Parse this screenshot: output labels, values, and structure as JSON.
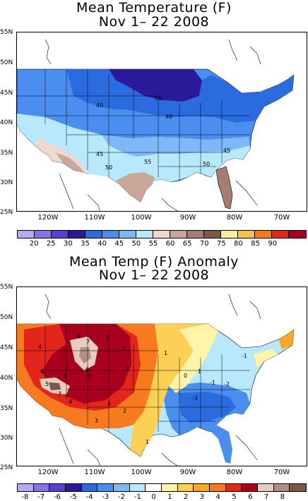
{
  "panels": [
    {
      "id": "mean-temperature",
      "title_line1": "Mean Temperature (F)",
      "title_line2": "Nov 1– 22 2008",
      "lat_labels": [
        "55N",
        "50N",
        "45N",
        "40N",
        "35N",
        "30N",
        "25N"
      ],
      "lon_labels": [
        "120W",
        "110W",
        "100W",
        "90W",
        "80W",
        "70W"
      ],
      "colorbar": {
        "colors": [
          "#b9a9f2",
          "#8a72e6",
          "#5a3fd4",
          "#2a1a9a",
          "#2b6be0",
          "#4a8ff0",
          "#7fb8f7",
          "#b8e8fb",
          "#f0d8d0",
          "#c9a59a",
          "#a57c70",
          "#7a5848",
          "#f7f09a",
          "#f8c14a",
          "#f77a1e",
          "#e2261c",
          "#a8001e"
        ],
        "labels": [
          "20",
          "25",
          "30",
          "35",
          "40",
          "45",
          "50",
          "55",
          "60",
          "65",
          "70",
          "75",
          "80",
          "85",
          "90"
        ]
      },
      "contour_labels": [
        "40",
        "55",
        "40",
        "45",
        "50",
        "55",
        "45",
        "50"
      ]
    },
    {
      "id": "mean-temperature-anomaly",
      "title_line1": "Mean Temp (F) Anomaly",
      "title_line2": "Nov 1– 22 2008",
      "lat_labels": [
        "55N",
        "50N",
        "45N",
        "40N",
        "35N",
        "30N",
        "25N"
      ],
      "lon_labels": [
        "120W",
        "110W",
        "100W",
        "90W",
        "80W",
        "70W"
      ],
      "colorbar": {
        "colors": [
          "#b9a9f2",
          "#8a72e6",
          "#5a3fd4",
          "#2a1a9a",
          "#2b6be0",
          "#4a8ff0",
          "#7fb8f7",
          "#b8e8fb",
          "#ffffff",
          "#fff4a8",
          "#fcd055",
          "#f9a72a",
          "#f77a1e",
          "#e2261c",
          "#a8001e",
          "#e9ccc0",
          "#b09084",
          "#7a5848"
        ],
        "labels": [
          "-8",
          "-7",
          "-6",
          "-5",
          "-4",
          "-3",
          "-2",
          "-1",
          "0",
          "1",
          "2",
          "3",
          "4",
          "5",
          "6",
          "7",
          "8"
        ]
      },
      "contour_labels": [
        "4",
        "6",
        "7",
        "6",
        "5",
        "3",
        "6",
        "5",
        "2",
        "5",
        "5",
        "4",
        "7",
        "4",
        "3",
        "2",
        "1",
        "1",
        "1",
        "0",
        "-1",
        "-2",
        "-3",
        "-1"
      ]
    }
  ]
}
